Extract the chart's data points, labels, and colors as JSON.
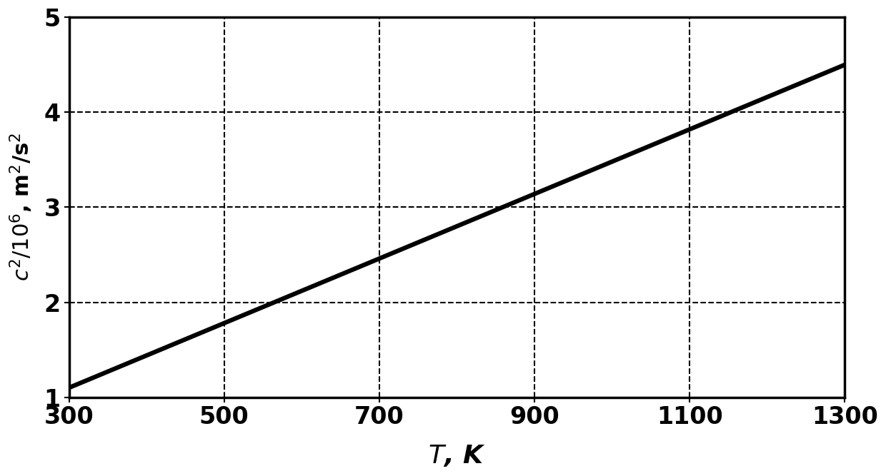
{
  "title": "",
  "xlabel": "$\\mathit{T}$, K",
  "ylabel": "$c^2/10^6$, m$^2$/s$^2$",
  "xlim": [
    300,
    1300
  ],
  "ylim": [
    1,
    5
  ],
  "xticks": [
    300,
    500,
    700,
    900,
    1100,
    1300
  ],
  "yticks": [
    1,
    2,
    3,
    4,
    5
  ],
  "x_data": [
    300,
    1300
  ],
  "y_data": [
    1.1,
    4.5
  ],
  "line_color": "#000000",
  "line_width": 4.5,
  "grid_color": "#000000",
  "grid_linestyle": "--",
  "grid_linewidth": 1.5,
  "background_color": "#ffffff",
  "xlabel_fontsize": 26,
  "ylabel_fontsize": 22,
  "tick_fontsize": 24,
  "spine_linewidth": 2.5
}
